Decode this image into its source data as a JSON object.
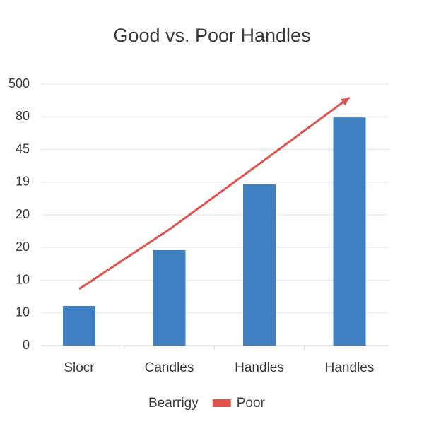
{
  "chart_data": {
    "type": "bar",
    "title": "Good vs. Poor Handles",
    "categories": [
      "Slocr",
      "Candles",
      "Handles",
      "Handles"
    ],
    "series": [
      {
        "name": "Bearrigy",
        "type": "bar",
        "color": "#3f7fc1",
        "values": [
          1.21,
          2.92,
          4.93,
          6.98
        ]
      },
      {
        "name": "Poor",
        "type": "line",
        "color": "#e0524d",
        "values": [
          1.73,
          3.55,
          5.56,
          7.59
        ]
      }
    ],
    "ylim": [
      0,
      8
    ],
    "yticks": [
      {
        "value": 0,
        "label": "0"
      },
      {
        "value": 1,
        "label": "10"
      },
      {
        "value": 2,
        "label": "10"
      },
      {
        "value": 3,
        "label": "20"
      },
      {
        "value": 4,
        "label": "20"
      },
      {
        "value": 5,
        "label": "19"
      },
      {
        "value": 6,
        "label": "45"
      },
      {
        "value": 7,
        "label": "80"
      },
      {
        "value": 8,
        "label": "500"
      }
    ],
    "grid": true
  }
}
